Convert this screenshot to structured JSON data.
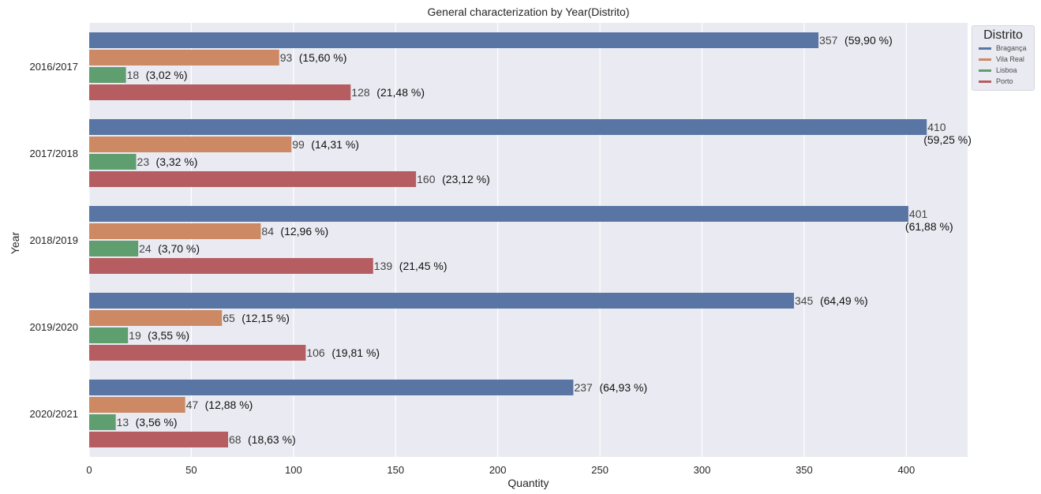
{
  "chart_data": {
    "type": "bar",
    "orientation": "horizontal",
    "title": "General characterization by Year(Distrito)",
    "xlabel": "Quantity",
    "ylabel": "Year",
    "xlim": [
      0,
      430
    ],
    "xticks": [
      "0",
      "50",
      "100",
      "150",
      "200",
      "250",
      "300",
      "350",
      "400"
    ],
    "grid": true,
    "legend": {
      "title": "Distrito",
      "placement": "top-right"
    },
    "categories": [
      "2016/2017",
      "2017/2018",
      "2018/2019",
      "2019/2020",
      "2020/2021"
    ],
    "series": [
      {
        "name": "Bragança",
        "color": "#5975a4",
        "values": [
          357,
          410,
          401,
          345,
          237
        ],
        "labels": [
          "(59,90 %)",
          "(59,25 %)",
          "(61,88 %)",
          "(64,49 %)",
          "(64,93 %)"
        ]
      },
      {
        "name": "Vila Real",
        "color": "#cc8963",
        "values": [
          93,
          99,
          84,
          65,
          47
        ],
        "labels": [
          "(15,60 %)",
          "(14,31 %)",
          "(12,96 %)",
          "(12,15 %)",
          "(12,88 %)"
        ]
      },
      {
        "name": "Lisboa",
        "color": "#5f9e6e",
        "values": [
          18,
          23,
          24,
          19,
          13
        ],
        "labels": [
          "(3,02 %)",
          "(3,32 %)",
          "(3,70 %)",
          "(3,55 %)",
          "(3,56 %)"
        ]
      },
      {
        "name": "Porto",
        "color": "#b55d60",
        "values": [
          128,
          160,
          139,
          106,
          68
        ],
        "labels": [
          "(21,48 %)",
          "(23,12 %)",
          "(21,45 %)",
          "(19,81 %)",
          "(18,63 %)"
        ]
      }
    ]
  }
}
